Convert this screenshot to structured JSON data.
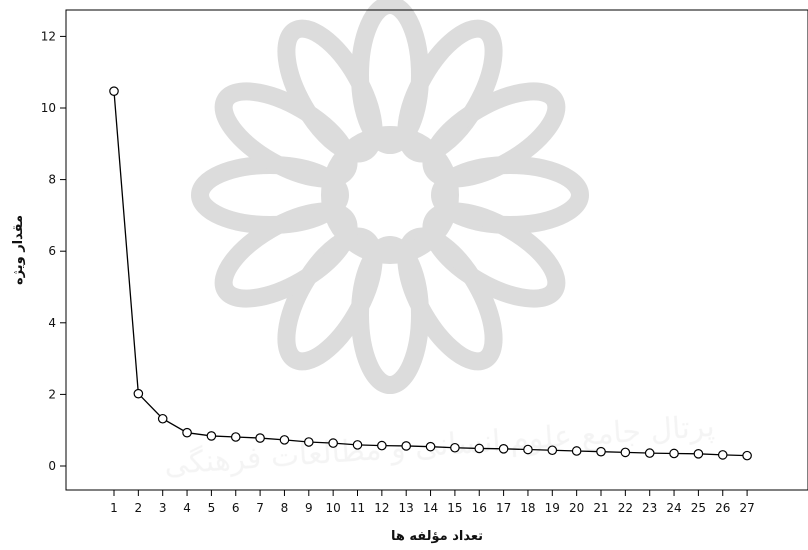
{
  "chart_data": {
    "type": "line",
    "title": "",
    "xlabel": "تعداد مؤلفه ها",
    "ylabel": "مقدار ویژه",
    "x": [
      1,
      2,
      3,
      4,
      5,
      6,
      7,
      8,
      9,
      10,
      11,
      12,
      13,
      14,
      15,
      16,
      17,
      18,
      19,
      20,
      21,
      22,
      23,
      24,
      25,
      26,
      27
    ],
    "series": [
      {
        "values": [
          10.47,
          2.02,
          1.32,
          0.93,
          0.84,
          0.81,
          0.78,
          0.73,
          0.67,
          0.64,
          0.59,
          0.57,
          0.56,
          0.54,
          0.51,
          0.49,
          0.48,
          0.46,
          0.44,
          0.42,
          0.4,
          0.38,
          0.36,
          0.35,
          0.34,
          0.31,
          0.29
        ],
        "color": "#000000",
        "marker": "open-circle"
      }
    ],
    "xlim": [
      1,
      27
    ],
    "ylim": [
      -0.6,
      12.6
    ],
    "yticks": [
      0,
      2,
      4,
      6,
      8,
      10,
      12
    ],
    "grid": false,
    "legend": "none"
  },
  "watermark": {
    "text": "پرتال جامع علوم انسانی و مطالعات فرهنگی",
    "color": "#c9c9c9"
  }
}
